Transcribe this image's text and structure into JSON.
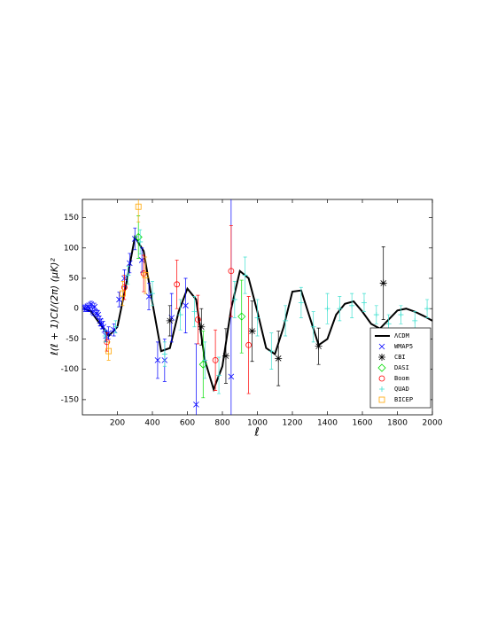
{
  "chart_data": {
    "type": "line",
    "xlabel": "ℓ",
    "ylabel": "ℓ(ℓ + 1)Cℓ/(2π) (μK)²",
    "xlim": [
      0,
      2000
    ],
    "ylim": [
      -175,
      180
    ],
    "xticks": [
      200,
      400,
      600,
      800,
      1000,
      1200,
      1400,
      1600,
      1800,
      2000
    ],
    "yticks": [
      -150,
      -100,
      -50,
      0,
      50,
      100,
      150
    ],
    "legend": "lower right",
    "series": [
      {
        "name": "ΛCDM",
        "kind": "line",
        "color": "#000000",
        "x": [
          10,
          50,
          100,
          150,
          200,
          250,
          300,
          350,
          400,
          450,
          500,
          550,
          600,
          650,
          700,
          750,
          800,
          850,
          900,
          950,
          1000,
          1050,
          1100,
          1150,
          1200,
          1250,
          1300,
          1350,
          1400,
          1450,
          1500,
          1550,
          1600,
          1650,
          1700,
          1750,
          1800,
          1850,
          1900,
          1950,
          2000
        ],
        "values": [
          0,
          -5,
          -25,
          -45,
          -30,
          40,
          118,
          95,
          10,
          -70,
          -65,
          -5,
          33,
          15,
          -85,
          -133,
          -95,
          0,
          62,
          50,
          -5,
          -65,
          -75,
          -30,
          28,
          30,
          -15,
          -60,
          -50,
          -10,
          8,
          12,
          -5,
          -25,
          -33,
          -18,
          -3,
          0,
          -5,
          -12,
          -20
        ]
      },
      {
        "name": "WMAP5",
        "kind": "scatter",
        "marker": "x",
        "color": "#0000ff",
        "x": [
          10,
          20,
          30,
          40,
          50,
          60,
          70,
          80,
          90,
          100,
          110,
          120,
          135,
          150,
          180,
          210,
          240,
          270,
          300,
          340,
          380,
          430,
          470,
          510,
          590,
          650,
          850
        ],
        "values": [
          2,
          -1,
          4,
          0,
          7,
          -5,
          3,
          -8,
          -10,
          -20,
          -25,
          -30,
          -45,
          -40,
          -35,
          15,
          50,
          75,
          115,
          80,
          20,
          -85,
          -85,
          -15,
          5,
          -158,
          -112
        ],
        "errors": [
          4,
          4,
          5,
          5,
          5,
          6,
          6,
          6,
          7,
          8,
          8,
          9,
          9,
          10,
          10,
          12,
          14,
          16,
          18,
          20,
          22,
          30,
          35,
          40,
          45,
          100,
          300
        ]
      },
      {
        "name": "CBI",
        "kind": "scatter",
        "marker": "star",
        "color": "#000000",
        "x": [
          500,
          680,
          820,
          970,
          1120,
          1350,
          1720
        ],
        "values": [
          -20,
          -30,
          -78,
          -37,
          -82,
          -62,
          42
        ],
        "errors": [
          25,
          30,
          45,
          50,
          45,
          30,
          60
        ]
      },
      {
        "name": "DASI",
        "kind": "scatter",
        "marker": "diamond",
        "color": "#00dd00",
        "x": [
          320,
          690,
          910
        ],
        "values": [
          118,
          -92,
          -13
        ],
        "errors": [
          35,
          55,
          60
        ]
      },
      {
        "name": "Boom",
        "kind": "scatter",
        "marker": "circle",
        "color": "#ff0000",
        "x": [
          140,
          240,
          350,
          540,
          660,
          760,
          850,
          950
        ],
        "values": [
          -55,
          35,
          58,
          40,
          -18,
          -85,
          62,
          -60
        ],
        "errors": [
          15,
          20,
          30,
          40,
          40,
          50,
          75,
          80
        ]
      },
      {
        "name": "QUAD",
        "kind": "scatter",
        "marker": "plus",
        "color": "#40e0d0",
        "x": [
          130,
          190,
          260,
          330,
          400,
          470,
          560,
          640,
          700,
          780,
          870,
          930,
          1000,
          1080,
          1160,
          1250,
          1320,
          1400,
          1470,
          1540,
          1610,
          1680,
          1750,
          1820,
          1900,
          1970
        ],
        "values": [
          -45,
          -30,
          55,
          110,
          25,
          -75,
          -10,
          -5,
          -85,
          -110,
          15,
          55,
          -15,
          -70,
          -20,
          10,
          -30,
          0,
          0,
          5,
          10,
          -10,
          -25,
          -10,
          -20,
          0
        ],
        "errors": [
          10,
          10,
          15,
          20,
          20,
          20,
          25,
          25,
          30,
          30,
          30,
          30,
          30,
          30,
          25,
          25,
          25,
          25,
          20,
          20,
          15,
          15,
          15,
          15,
          15,
          15
        ]
      },
      {
        "name": "BICEP",
        "kind": "scatter",
        "marker": "square",
        "color": "#ffa500",
        "x": [
          150,
          230,
          320,
          360
        ],
        "values": [
          -70,
          25,
          168,
          55
        ],
        "errors": [
          15,
          20,
          25,
          30
        ]
      }
    ]
  }
}
